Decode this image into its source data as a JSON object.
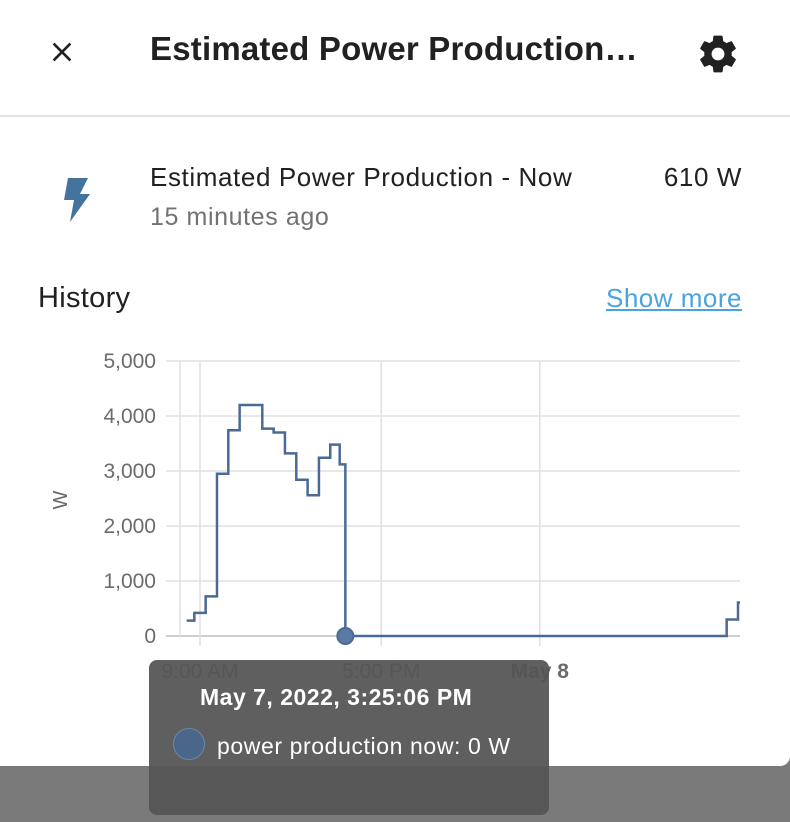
{
  "dialog": {
    "title": "Estimated Power Production - Now"
  },
  "entity": {
    "name": "Estimated Power Production - Now",
    "last_changed": "15 minutes ago",
    "state": "610 W",
    "icon": "flash-icon"
  },
  "history": {
    "heading": "History",
    "show_more_label": "Show more"
  },
  "chart_data": {
    "type": "line",
    "step": true,
    "ylabel": "W",
    "ylim": [
      0,
      5000
    ],
    "y_ticks": [
      "5,000",
      "4,000",
      "3,000",
      "2,000",
      "1,000",
      "0"
    ],
    "x_ticks": [
      "9:00 AM",
      "5:00 PM",
      "May 8"
    ],
    "series": [
      {
        "name": "power production now",
        "color": "#4a6a95",
        "points": [
          [
            "May 7 8:30 AM",
            280
          ],
          [
            "May 7 8:45 AM",
            420
          ],
          [
            "May 7 9:15 AM",
            720
          ],
          [
            "May 7 9:45 AM",
            2950
          ],
          [
            "May 7 10:15 AM",
            3740
          ],
          [
            "May 7 10:45 AM",
            4200
          ],
          [
            "May 7 11:45 AM",
            3770
          ],
          [
            "May 7 12:15 PM",
            3700
          ],
          [
            "May 7 12:45 PM",
            3320
          ],
          [
            "May 7 1:15 PM",
            2840
          ],
          [
            "May 7 1:45 PM",
            2560
          ],
          [
            "May 7 2:15 PM",
            3240
          ],
          [
            "May 7 2:45 PM",
            3480
          ],
          [
            "May 7 3:10 PM",
            3120
          ],
          [
            "May 7 3:25 PM",
            0
          ],
          [
            "May 8 7:45 AM",
            0
          ],
          [
            "May 8 8:15 AM",
            300
          ],
          [
            "May 8 8:45 AM",
            610
          ]
        ]
      }
    ],
    "grid": true,
    "highlight_point": [
      "May 7 3:25 PM",
      0
    ]
  },
  "tooltip": {
    "title": "May 7, 2022, 3:25:06 PM",
    "label": "power production now: 0 W"
  },
  "icons": {
    "close": "close-icon",
    "settings": "gear-icon"
  }
}
